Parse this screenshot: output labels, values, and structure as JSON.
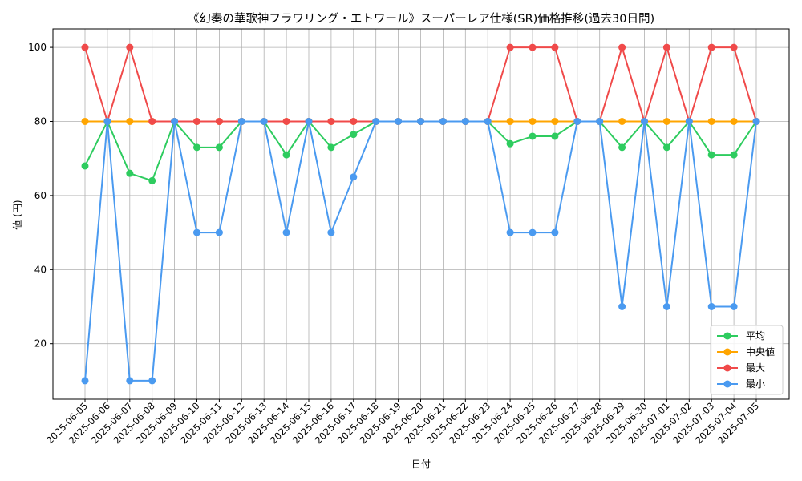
{
  "chart_data": {
    "type": "line",
    "title": "《幻奏の華歌神フラワリング・エトワール》スーパーレア仕様(SR)価格推移(過去30日間)",
    "xlabel": "日付",
    "ylabel": "値 (円)",
    "ylim": [
      5,
      105
    ],
    "yticks": [
      20,
      40,
      60,
      80,
      100
    ],
    "grid": true,
    "legend_position": "bottom-right",
    "categories": [
      "2025-06-05",
      "2025-06-06",
      "2025-06-07",
      "2025-06-08",
      "2025-06-09",
      "2025-06-10",
      "2025-06-11",
      "2025-06-12",
      "2025-06-13",
      "2025-06-14",
      "2025-06-15",
      "2025-06-16",
      "2025-06-17",
      "2025-06-18",
      "2025-06-19",
      "2025-06-20",
      "2025-06-21",
      "2025-06-22",
      "2025-06-23",
      "2025-06-24",
      "2025-06-25",
      "2025-06-26",
      "2025-06-27",
      "2025-06-28",
      "2025-06-29",
      "2025-06-30",
      "2025-07-01",
      "2025-07-02",
      "2025-07-03",
      "2025-07-04",
      "2025-07-05"
    ],
    "series": [
      {
        "name": "平均",
        "color": "#2ecc5f",
        "values": [
          68,
          80,
          66,
          64,
          80,
          73,
          73,
          80,
          80,
          71,
          80,
          73,
          76.5,
          80,
          80,
          80,
          80,
          80,
          80,
          74,
          76,
          76,
          80,
          80,
          73,
          80,
          73,
          80,
          71,
          71,
          80
        ]
      },
      {
        "name": "中央値",
        "color": "#ffa500",
        "values": [
          80,
          80,
          80,
          80,
          80,
          80,
          80,
          80,
          80,
          80,
          80,
          80,
          80,
          80,
          80,
          80,
          80,
          80,
          80,
          80,
          80,
          80,
          80,
          80,
          80,
          80,
          80,
          80,
          80,
          80,
          80
        ]
      },
      {
        "name": "最大",
        "color": "#f04a4a",
        "values": [
          100,
          80,
          100,
          80,
          80,
          80,
          80,
          80,
          80,
          80,
          80,
          80,
          80,
          80,
          80,
          80,
          80,
          80,
          80,
          100,
          100,
          100,
          80,
          80,
          100,
          80,
          100,
          80,
          100,
          100,
          80
        ]
      },
      {
        "name": "最小",
        "color": "#4a9af0",
        "values": [
          10,
          80,
          10,
          10,
          80,
          50,
          50,
          80,
          80,
          50,
          80,
          50,
          65,
          80,
          80,
          80,
          80,
          80,
          80,
          50,
          50,
          50,
          80,
          80,
          30,
          80,
          30,
          80,
          30,
          30,
          80
        ]
      }
    ]
  }
}
